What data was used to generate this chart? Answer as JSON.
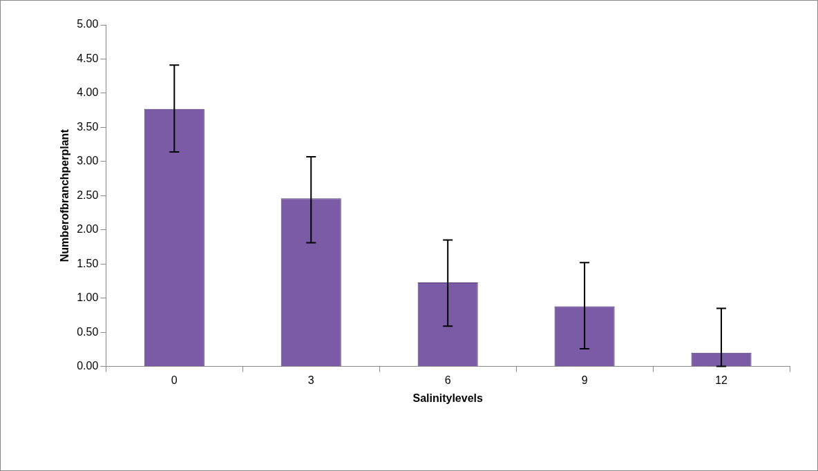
{
  "chart_data": {
    "type": "bar",
    "xlabel": "Salinitylevels",
    "ylabel": "Numberofbranchperplant",
    "categories": [
      "0",
      "3",
      "6",
      "9",
      "12"
    ],
    "values": [
      3.77,
      2.46,
      1.23,
      0.88,
      0.2
    ],
    "errors": [
      [
        3.14,
        4.41
      ],
      [
        1.81,
        3.07
      ],
      [
        0.59,
        1.85
      ],
      [
        0.26,
        1.52
      ],
      [
        0,
        0.85
      ]
    ],
    "color": "#7b5aa6",
    "ylim": [
      0,
      5
    ],
    "yticks": [
      {
        "value": 0,
        "label": "0.00"
      },
      {
        "value": 0.5,
        "label": "0.50"
      },
      {
        "value": 1,
        "label": "1.00"
      },
      {
        "value": 1.5,
        "label": "1.50"
      },
      {
        "value": 2,
        "label": "2.00"
      },
      {
        "value": 2.5,
        "label": "2.50"
      },
      {
        "value": 3,
        "label": "3.00"
      },
      {
        "value": 3.5,
        "label": "3.50"
      },
      {
        "value": 4,
        "label": "4.00"
      },
      {
        "value": 4.5,
        "label": "4.50"
      },
      {
        "value": 5,
        "label": "5.00"
      }
    ],
    "grid": false,
    "legend": false
  }
}
